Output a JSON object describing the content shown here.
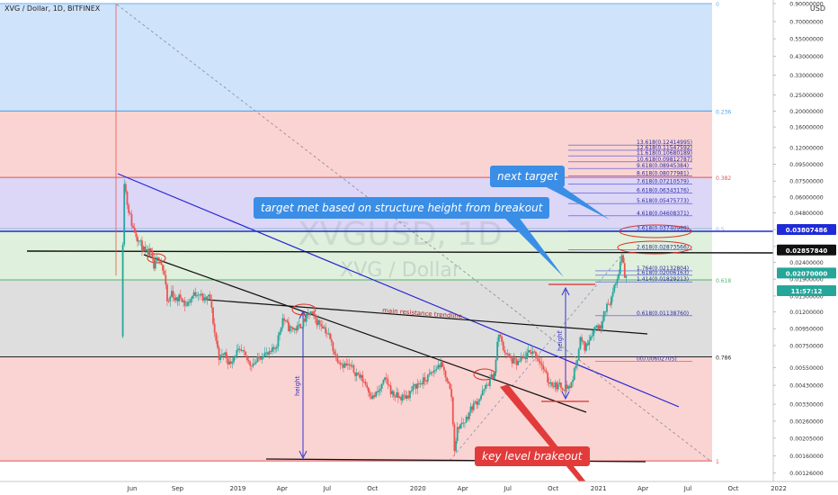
{
  "chart_data": {
    "type": "candlestick",
    "title": "XVG / Dollar, 1D, BITFINEX",
    "watermark_symbol": "XVGUSD, 1D",
    "watermark_name": "XVG / Dollar",
    "currency": "USD",
    "y_scale": "log",
    "ylim": [
      0.0012,
      0.9
    ],
    "x_ticks": [
      {
        "label": "Jun",
        "date": "2018-06-01"
      },
      {
        "label": "Sep",
        "date": "2018-09-01"
      },
      {
        "label": "2019",
        "date": "2019-01-01"
      },
      {
        "label": "Apr",
        "date": "2019-04-01"
      },
      {
        "label": "Jul",
        "date": "2019-07-01"
      },
      {
        "label": "Oct",
        "date": "2019-10-01"
      },
      {
        "label": "2020",
        "date": "2020-01-01"
      },
      {
        "label": "Apr",
        "date": "2020-04-01"
      },
      {
        "label": "Jul",
        "date": "2020-07-01"
      },
      {
        "label": "Oct",
        "date": "2020-10-01"
      },
      {
        "label": "2021",
        "date": "2021-01-01"
      },
      {
        "label": "Apr",
        "date": "2021-04-01"
      },
      {
        "label": "Jul",
        "date": "2021-07-01"
      },
      {
        "label": "Oct",
        "date": "2021-10-01"
      },
      {
        "label": "2022",
        "date": "2022-01-01"
      }
    ],
    "y_ticks": [
      "0.90000000",
      "0.70000000",
      "0.55000000",
      "0.43000000",
      "0.33000000",
      "0.25000000",
      "0.20000000",
      "0.16000000",
      "0.12000000",
      "0.09500000",
      "0.07500000",
      "0.06000000",
      "0.04800000",
      "0.03800000",
      "0.03000000",
      "0.02400000",
      "0.01900000",
      "0.01500000",
      "0.01200000",
      "0.00950000",
      "0.00750000",
      "0.00550000",
      "0.00430000",
      "0.00330000",
      "0.00260000",
      "0.00205000",
      "0.00160000",
      "0.00126000"
    ],
    "price_badges": [
      {
        "label": "0.03807486",
        "value": 0.03807486,
        "color": "#1f2ad8"
      },
      {
        "label": "0.02857840",
        "value": 0.0285784,
        "color": "#111111"
      },
      {
        "label": "0.02070000",
        "value": 0.0207,
        "color": "#26a69a"
      },
      {
        "label": "11:57:12",
        "value": 0.0181,
        "color": "#26a69a"
      }
    ],
    "fib_retracement": [
      {
        "ratio": "0",
        "price": 0.9,
        "band_to": 0.2,
        "band_color": "#cfe3fb",
        "line_color": "#6ab0f0"
      },
      {
        "ratio": "0.236",
        "price": 0.2,
        "band_to": 0.079,
        "band_color": "#f9d4d2",
        "line_color": "#4aa0e8"
      },
      {
        "ratio": "0.382",
        "price": 0.079,
        "band_to": 0.0385,
        "band_color": "#dcd6f7",
        "line_color": "#e05555"
      },
      {
        "ratio": "0.5",
        "price": 0.0385,
        "band_to": 0.0188,
        "band_color": "#dff0dc",
        "line_color": "#8fb3e0"
      },
      {
        "ratio": "0.618",
        "price": 0.0188,
        "band_to": 0.0064,
        "band_color": "#dedede",
        "line_color": "#4db86b"
      },
      {
        "ratio": "0.786",
        "price": 0.0064,
        "band_to": 0.00149,
        "band_color": "#f9d4d2",
        "line_color": "#222222"
      },
      {
        "ratio": "1",
        "price": 0.00149,
        "band_to": null,
        "band_color": null,
        "line_color": "#e05555"
      }
    ],
    "fib_extension": [
      {
        "label": "13.618(0.12414995)",
        "price": 0.12414995
      },
      {
        "label": "12.618(0.11547592)",
        "price": 0.11547592
      },
      {
        "label": "11.618(0.10680189)",
        "price": 0.10680189
      },
      {
        "label": "10.618(0.09812787)",
        "price": 0.09812787
      },
      {
        "label": "9.618(0.08945384)",
        "price": 0.08945384
      },
      {
        "label": "8.618(0.08077981)",
        "price": 0.08077981
      },
      {
        "label": "7.618(0.07210579)",
        "price": 0.07210579
      },
      {
        "label": "6.618(0.06343176)",
        "price": 0.06343176
      },
      {
        "label": "5.618(0.05475773)",
        "price": 0.05475773
      },
      {
        "label": "4.618(0.04608371)",
        "price": 0.04608371
      },
      {
        "label": "3.618(0.03740968)",
        "price": 0.03740968
      },
      {
        "label": "2.618(0.02873566)",
        "price": 0.02873566
      },
      {
        "label": "1.764(0.02132804)",
        "price": 0.02132804
      },
      {
        "label": "1.618(0.02006163)",
        "price": 0.02006163
      },
      {
        "label": "1.414(0.01829213)",
        "price": 0.01829213
      },
      {
        "label": "0.618(0.01138760)",
        "price": 0.0113876
      },
      {
        "label": "0(0.00602705)",
        "price": 0.00602705
      }
    ],
    "price_path": [
      [
        "2018-05-10",
        0.0085
      ],
      [
        "2018-05-15",
        0.08
      ],
      [
        "2018-05-22",
        0.055
      ],
      [
        "2018-06-01",
        0.04
      ],
      [
        "2018-06-10",
        0.035
      ],
      [
        "2018-06-20",
        0.03
      ],
      [
        "2018-06-28",
        0.027
      ],
      [
        "2018-07-08",
        0.028
      ],
      [
        "2018-07-15",
        0.022
      ],
      [
        "2018-07-25",
        0.027
      ],
      [
        "2018-08-05",
        0.02
      ],
      [
        "2018-08-12",
        0.013
      ],
      [
        "2018-08-20",
        0.016
      ],
      [
        "2018-08-28",
        0.014
      ],
      [
        "2018-09-08",
        0.015
      ],
      [
        "2018-09-18",
        0.013
      ],
      [
        "2018-10-01",
        0.015
      ],
      [
        "2018-10-12",
        0.016
      ],
      [
        "2018-10-25",
        0.014
      ],
      [
        "2018-11-05",
        0.015
      ],
      [
        "2018-11-15",
        0.009
      ],
      [
        "2018-11-25",
        0.0062
      ],
      [
        "2018-12-05",
        0.0068
      ],
      [
        "2018-12-15",
        0.0058
      ],
      [
        "2018-12-28",
        0.0068
      ],
      [
        "2019-01-10",
        0.0068
      ],
      [
        "2019-01-25",
        0.0058
      ],
      [
        "2019-02-08",
        0.006
      ],
      [
        "2019-02-22",
        0.0068
      ],
      [
        "2019-03-05",
        0.0065
      ],
      [
        "2019-03-20",
        0.0075
      ],
      [
        "2019-04-02",
        0.011
      ],
      [
        "2019-04-15",
        0.0095
      ],
      [
        "2019-05-01",
        0.0095
      ],
      [
        "2019-05-15",
        0.0105
      ],
      [
        "2019-05-28",
        0.012
      ],
      [
        "2019-06-10",
        0.0105
      ],
      [
        "2019-06-22",
        0.01
      ],
      [
        "2019-07-05",
        0.0085
      ],
      [
        "2019-07-18",
        0.0065
      ],
      [
        "2019-08-01",
        0.0058
      ],
      [
        "2019-08-15",
        0.0056
      ],
      [
        "2019-09-01",
        0.005
      ],
      [
        "2019-09-15",
        0.0045
      ],
      [
        "2019-10-01",
        0.0036
      ],
      [
        "2019-10-15",
        0.004
      ],
      [
        "2019-10-28",
        0.0047
      ],
      [
        "2019-11-10",
        0.0038
      ],
      [
        "2019-11-25",
        0.0036
      ],
      [
        "2019-12-10",
        0.0037
      ],
      [
        "2019-12-28",
        0.0043
      ],
      [
        "2020-01-15",
        0.0046
      ],
      [
        "2020-02-01",
        0.0052
      ],
      [
        "2020-02-15",
        0.0058
      ],
      [
        "2020-02-28",
        0.0048
      ],
      [
        "2020-03-10",
        0.0036
      ],
      [
        "2020-03-14",
        0.0017
      ],
      [
        "2020-03-22",
        0.0024
      ],
      [
        "2020-04-05",
        0.0026
      ],
      [
        "2020-04-20",
        0.0032
      ],
      [
        "2020-05-05",
        0.0036
      ],
      [
        "2020-05-20",
        0.0043
      ],
      [
        "2020-06-05",
        0.0052
      ],
      [
        "2020-06-12",
        0.009
      ],
      [
        "2020-06-22",
        0.0072
      ],
      [
        "2020-07-05",
        0.0062
      ],
      [
        "2020-07-20",
        0.0058
      ],
      [
        "2020-08-05",
        0.0064
      ],
      [
        "2020-08-20",
        0.007
      ],
      [
        "2020-09-05",
        0.006
      ],
      [
        "2020-09-20",
        0.0046
      ],
      [
        "2020-10-05",
        0.0043
      ],
      [
        "2020-10-20",
        0.0042
      ],
      [
        "2020-11-05",
        0.0042
      ],
      [
        "2020-11-15",
        0.0055
      ],
      [
        "2020-11-25",
        0.0082
      ],
      [
        "2020-12-05",
        0.0072
      ],
      [
        "2020-12-15",
        0.0086
      ],
      [
        "2020-12-28",
        0.01
      ],
      [
        "2021-01-05",
        0.0095
      ],
      [
        "2021-01-12",
        0.0125
      ],
      [
        "2021-01-20",
        0.013
      ],
      [
        "2021-01-28",
        0.015
      ],
      [
        "2021-02-05",
        0.0175
      ],
      [
        "2021-02-12",
        0.022
      ],
      [
        "2021-02-18",
        0.028
      ],
      [
        "2021-02-23",
        0.0195
      ],
      [
        "2021-02-28",
        0.0207
      ]
    ],
    "annotations": [
      {
        "text": "next target",
        "style": "callout-blue"
      },
      {
        "text": "target met based on structure height from breakout",
        "style": "callout-blue"
      },
      {
        "text": "main resistance trendline",
        "style": "label-dark-red"
      },
      {
        "text": "height",
        "style": "label-vertical"
      },
      {
        "text": "height",
        "style": "label-vertical"
      },
      {
        "text": "key level brakeout",
        "style": "callout-red"
      }
    ],
    "grid": false
  }
}
